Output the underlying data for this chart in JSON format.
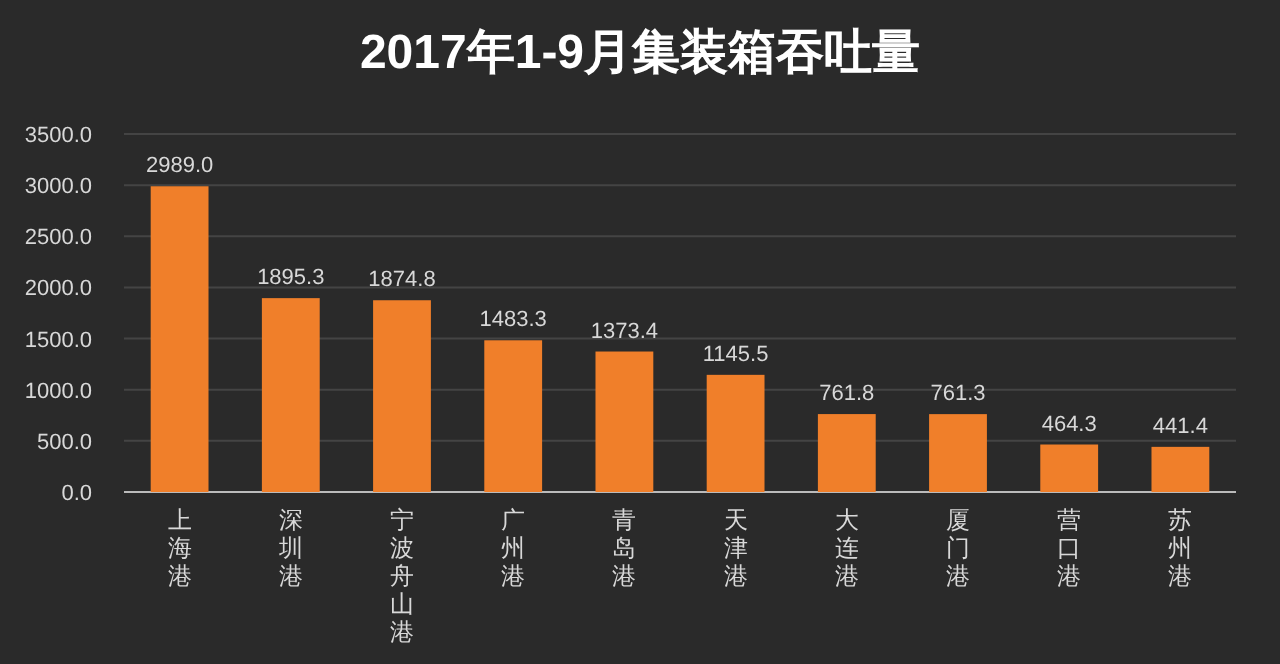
{
  "chart_data": {
    "type": "bar",
    "title": "2017年1-9月集装箱吞吐量",
    "categories": [
      "上海港",
      "深圳港",
      "宁波舟山港",
      "广州港",
      "青岛港",
      "天津港",
      "大连港",
      "厦门港",
      "营口港",
      "苏州港"
    ],
    "values": [
      2989.0,
      1895.3,
      1874.8,
      1483.3,
      1373.4,
      1145.5,
      761.8,
      761.3,
      464.3,
      441.4
    ],
    "value_labels": [
      "2989.0",
      "1895.3",
      "1874.8",
      "1483.3",
      "1373.4",
      "1145.5",
      "761.8",
      "761.3",
      "464.3",
      "441.4"
    ],
    "color": "#f07f2a",
    "ylim": [
      0,
      3500
    ],
    "yticks": [
      {
        "value": 0,
        "label": "0.0"
      },
      {
        "value": 500,
        "label": "500.0"
      },
      {
        "value": 1000,
        "label": "1000.0"
      },
      {
        "value": 1500,
        "label": "1500.0"
      },
      {
        "value": 2000,
        "label": "2000.0"
      },
      {
        "value": 2500,
        "label": "2500.0"
      },
      {
        "value": 3000,
        "label": "3000.0"
      },
      {
        "value": 3500,
        "label": "3500.0"
      }
    ],
    "grid": "y"
  }
}
